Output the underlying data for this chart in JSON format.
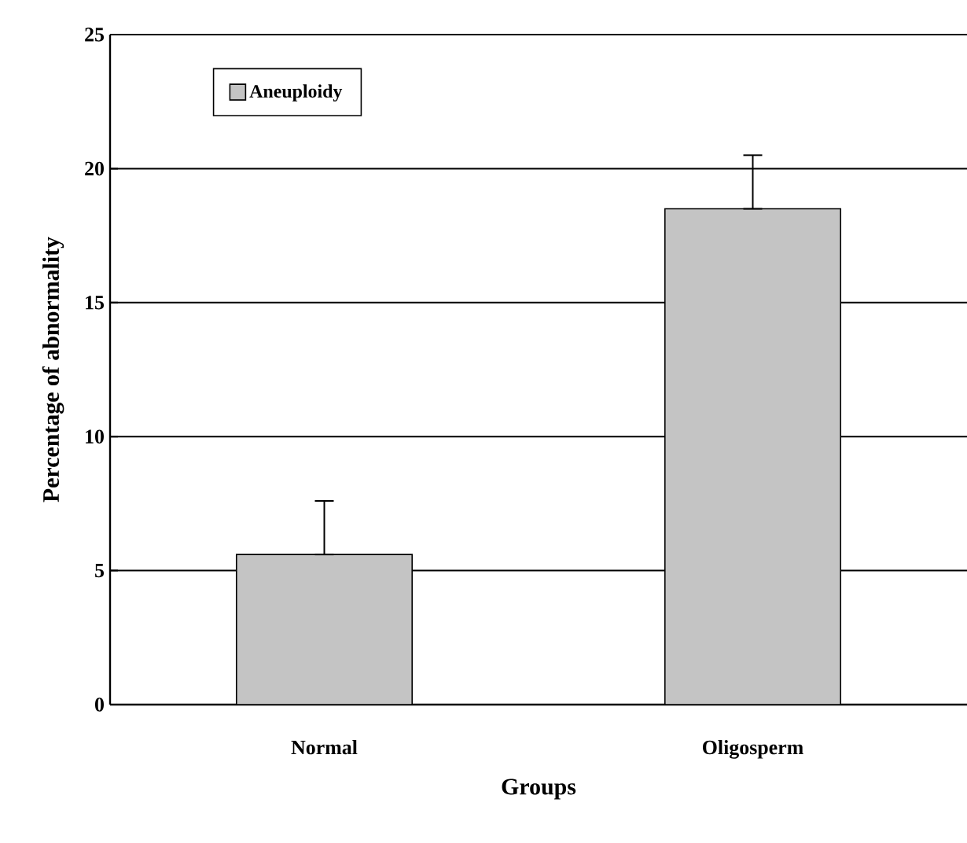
{
  "chart_data": {
    "type": "bar",
    "xlabel": "Groups",
    "ylabel": "Percentage of abnormality",
    "categories": [
      "Normal",
      "Oligosperm"
    ],
    "series": [
      {
        "name": "Aneuploidy",
        "color": "#c4c4c4",
        "values": [
          5.6,
          18.5
        ],
        "errors": [
          [
            5.6,
            7.6
          ],
          [
            18.5,
            20.5
          ]
        ]
      }
    ],
    "ylim": [
      0,
      25
    ],
    "yticks": [
      0,
      5,
      10,
      15,
      20,
      25
    ],
    "grid": "y",
    "legend": "top left"
  }
}
